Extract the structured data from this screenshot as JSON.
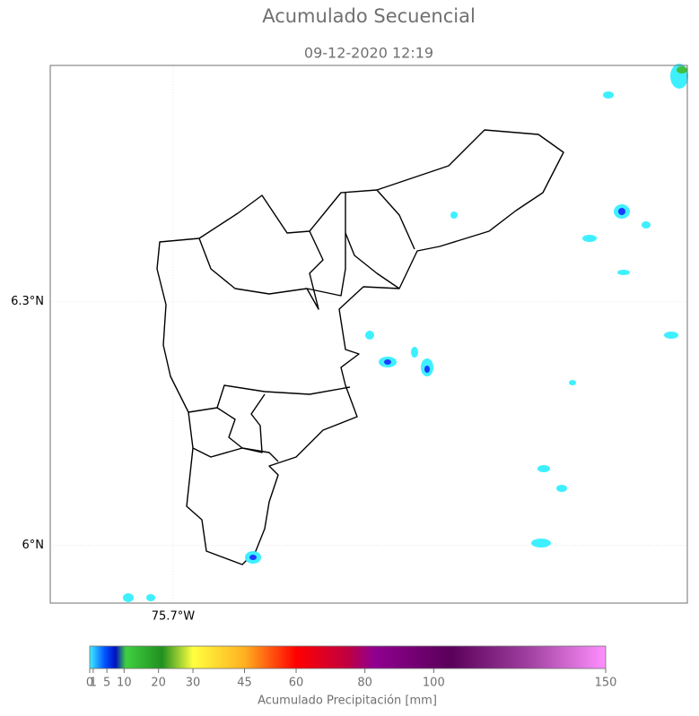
{
  "title": "Acumulado Secuencial",
  "subtitle": "09-12-2020 12:19",
  "map": {
    "lat_range": [
      5.929,
      6.591
    ],
    "lon_range": [
      -75.851,
      -75.068
    ],
    "lat_ticks": [
      {
        "value": 6.3,
        "label": "6.3°N"
      },
      {
        "value": 6.0,
        "label": "6°N"
      }
    ],
    "lon_ticks": [
      {
        "value": -75.7,
        "label": "75.7°W"
      }
    ]
  },
  "colorbar": {
    "range": [
      0,
      150
    ],
    "ticks": [
      0,
      1,
      5,
      10,
      20,
      30,
      45,
      60,
      80,
      100,
      150
    ],
    "label": "Acumulado Precipitación [mm]"
  }
}
